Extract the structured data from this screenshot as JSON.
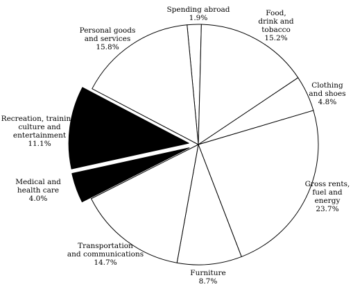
{
  "chart_data": {
    "type": "pie",
    "start_angle_deg": -95.4,
    "direction": "clockwise",
    "colors": {
      "normal": "#ffffff",
      "highlight": "#000000",
      "stroke": "#000000",
      "background": "#ffffff"
    },
    "slices": [
      {
        "lines": [
          "Spending abroad"
        ],
        "value_text": "1.9%",
        "value": 1.9,
        "highlight": false
      },
      {
        "lines": [
          "Food,",
          "drink and",
          "tobacco"
        ],
        "value_text": "15.2%",
        "value": 15.2,
        "highlight": false
      },
      {
        "lines": [
          "Clothing",
          "and shoes"
        ],
        "value_text": "4.8%",
        "value": 4.8,
        "highlight": false
      },
      {
        "lines": [
          "Gross rents,",
          "fuel and",
          "energy"
        ],
        "value_text": "23.7%",
        "value": 23.7,
        "highlight": false
      },
      {
        "lines": [
          "Furniture"
        ],
        "value_text": "8.7%",
        "value": 8.7,
        "highlight": false
      },
      {
        "lines": [
          "Transportation",
          "and communications"
        ],
        "value_text": "14.7%",
        "value": 14.7,
        "highlight": false
      },
      {
        "lines": [
          "Medical and",
          "health care"
        ],
        "value_text": "4.0%",
        "value": 4.0,
        "highlight": true
      },
      {
        "lines": [
          "Recreation, training,",
          "culture and",
          "entertainment"
        ],
        "value_text": "11.1%",
        "value": 11.1,
        "highlight": true
      },
      {
        "lines": [
          "Personal goods",
          "and services"
        ],
        "value_text": "15.8%",
        "value": 15.8,
        "highlight": false
      }
    ]
  }
}
